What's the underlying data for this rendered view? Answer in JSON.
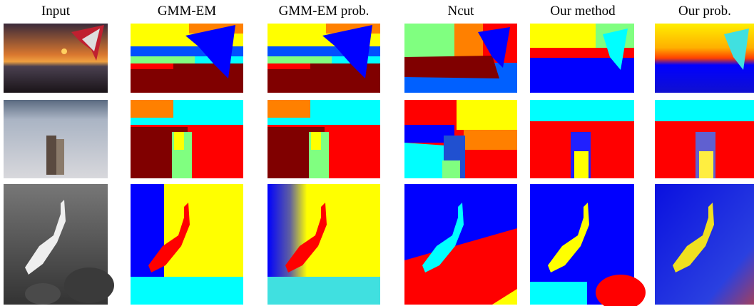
{
  "headers": [
    "Input",
    "GMM-EM",
    "GMM-EM prob.",
    "Ncut",
    "Our method",
    "Our prob."
  ]
}
